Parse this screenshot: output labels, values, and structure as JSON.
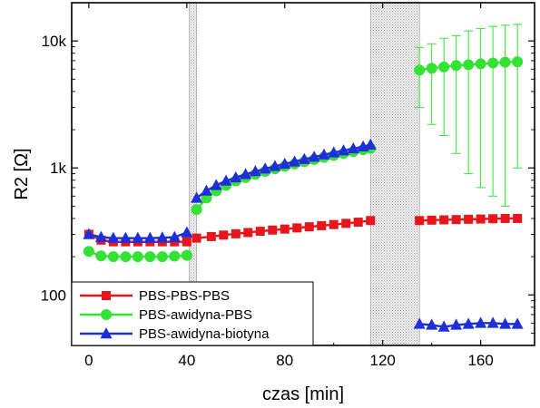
{
  "chart_data": {
    "type": "line",
    "xlabel": "czas [min]",
    "ylabel": "R2 [Ω]",
    "x_ticks": [
      0,
      40,
      80,
      120,
      160
    ],
    "y_scale": "log",
    "y_ticks": [
      100,
      1000,
      10000
    ],
    "y_tick_labels": [
      "100",
      "1k",
      "10k"
    ],
    "xlim": [
      -7,
      182
    ],
    "ylim": [
      40,
      20000
    ],
    "shaded_intervals": [
      [
        41,
        44
      ],
      [
        115,
        135
      ]
    ],
    "legend_position": "bottom-left",
    "series": [
      {
        "name": "PBS-PBS-PBS",
        "color": "#e8161c",
        "marker": "square",
        "segments": [
          {
            "x": [
              0,
              5,
              10,
              15,
              20,
              25,
              30,
              35,
              40
            ],
            "y": [
              300,
              270,
              262,
              262,
              262,
              262,
              262,
              262,
              262
            ]
          },
          {
            "x": [
              44,
              50,
              55,
              60,
              65,
              70,
              75,
              80,
              85,
              90,
              95,
              100,
              105,
              110,
              115
            ],
            "y": [
              280,
              288,
              296,
              303,
              310,
              317,
              324,
              330,
              337,
              344,
              351,
              358,
              366,
              374,
              385
            ]
          },
          {
            "x": [
              135,
              140,
              145,
              150,
              155,
              160,
              165,
              170,
              175
            ],
            "y": [
              385,
              388,
              390,
              392,
              394,
              396,
              398,
              400,
              400
            ]
          }
        ]
      },
      {
        "name": "PBS-awidyna-PBS",
        "color": "#33e333",
        "marker": "circle",
        "segments": [
          {
            "x": [
              0,
              5,
              10,
              15,
              20,
              25,
              30,
              35,
              40
            ],
            "y": [
              220,
              203,
              200,
              200,
              200,
              200,
              200,
              202,
              205
            ]
          },
          {
            "x": [
              44,
              48,
              52,
              56,
              60,
              64,
              68,
              72,
              76,
              80,
              84,
              88,
              92,
              96,
              100,
              104,
              108,
              112,
              115
            ],
            "y": [
              470,
              580,
              660,
              730,
              790,
              840,
              890,
              940,
              985,
              1030,
              1075,
              1120,
              1165,
              1210,
              1255,
              1300,
              1345,
              1390,
              1430
            ]
          },
          {
            "x": [
              135,
              140,
              145,
              150,
              155,
              160,
              165,
              170,
              175
            ],
            "y": [
              5900,
              6100,
              6250,
              6400,
              6500,
              6600,
              6700,
              6800,
              6850
            ],
            "error_upper": [
              8900,
              9500,
              10500,
              11000,
              12000,
              12500,
              13000,
              13300,
              13500
            ],
            "error_lower": [
              3000,
              2200,
              1800,
              1300,
              900,
              700,
              600,
              500,
              1000
            ]
          }
        ]
      },
      {
        "name": "PBS-awidyna-biotyna",
        "color": "#1f2fd8",
        "marker": "triangle",
        "segments": [
          {
            "x": [
              0,
              5,
              10,
              15,
              20,
              25,
              30,
              35,
              40
            ],
            "y": [
              300,
              285,
              280,
              280,
              280,
              280,
              282,
              285,
              310
            ]
          },
          {
            "x": [
              44,
              48,
              52,
              56,
              60,
              64,
              68,
              72,
              76,
              80,
              84,
              88,
              92,
              96,
              100,
              104,
              108,
              112,
              115
            ],
            "y": [
              580,
              660,
              730,
              790,
              840,
              890,
              940,
              985,
              1030,
              1075,
              1120,
              1170,
              1220,
              1270,
              1320,
              1370,
              1420,
              1470,
              1520
            ]
          },
          {
            "x": [
              135,
              140,
              145,
              150,
              155,
              160,
              165,
              170,
              175
            ],
            "y": [
              59,
              58,
              56,
              58,
              59,
              60,
              60,
              59,
              59
            ]
          }
        ]
      }
    ]
  }
}
